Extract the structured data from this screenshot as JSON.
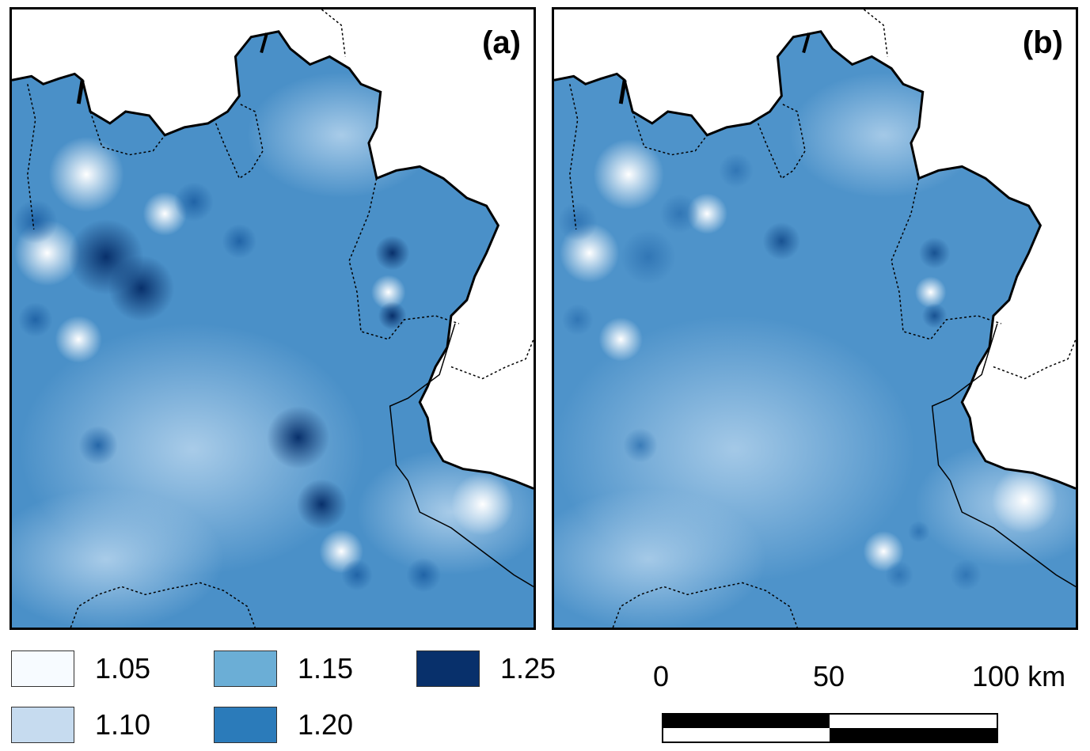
{
  "panels": [
    {
      "label": "(a)"
    },
    {
      "label": "(b)"
    }
  ],
  "legend": [
    {
      "label": "1.05",
      "color": "#f7fbff"
    },
    {
      "label": "1.10",
      "color": "#c6dbef"
    },
    {
      "label": "1.15",
      "color": "#6baed6"
    },
    {
      "label": "1.20",
      "color": "#2b7bba"
    },
    {
      "label": "1.25",
      "color": "#08306b"
    }
  ],
  "scale_bar": {
    "ticks": [
      "0",
      "50",
      "100 km"
    ],
    "values_km": [
      0,
      50,
      100
    ]
  },
  "colors": {
    "base": "#4a90c8",
    "light": "#eef5fc",
    "dark": "#0b3a78",
    "border": "#000000"
  }
}
